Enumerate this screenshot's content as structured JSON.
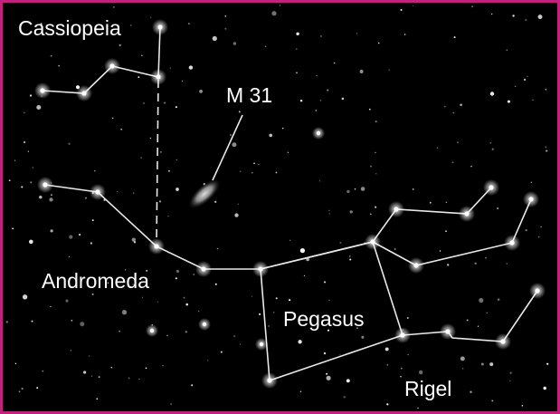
{
  "labels": {
    "cassiopeia": "Cassiopeia",
    "m31": "M 31",
    "andromeda": "Andromeda",
    "pegasus": "Pegasus",
    "rigel": "Rigel"
  }
}
